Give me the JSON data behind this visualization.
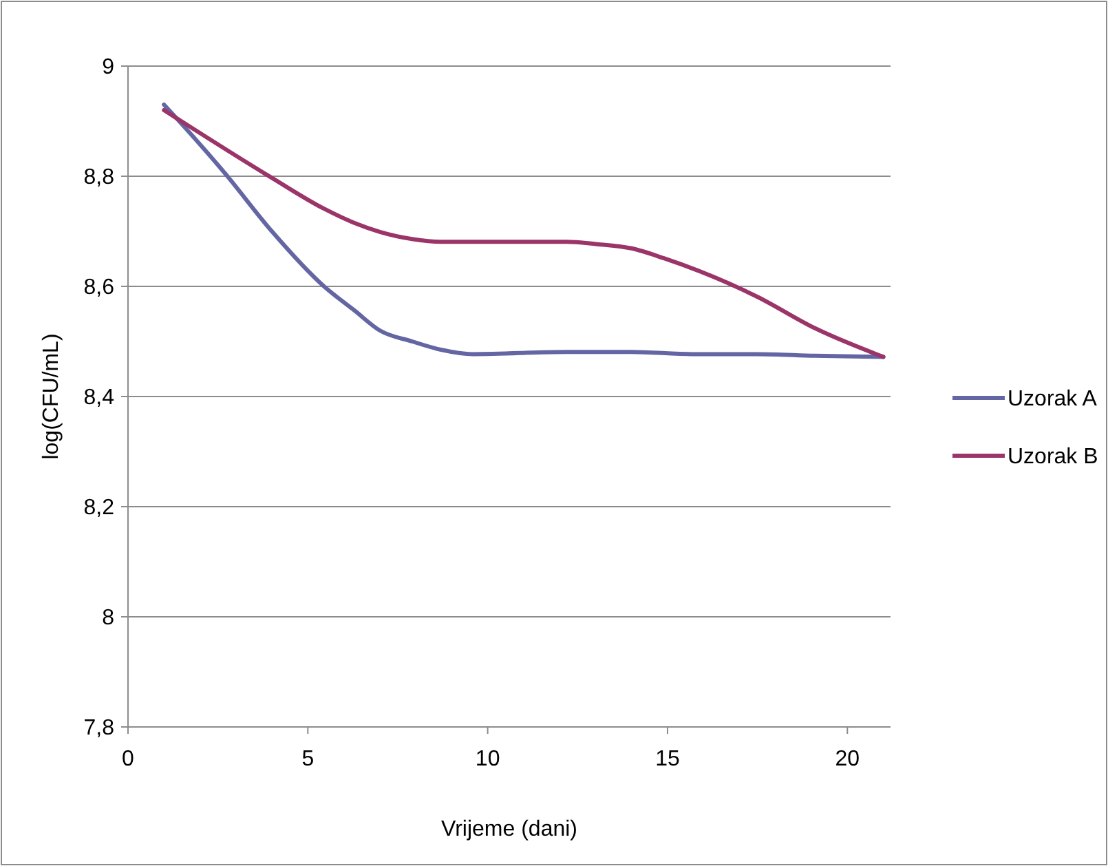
{
  "chart_data": {
    "type": "line",
    "xlabel": "Vrijeme (dani)",
    "ylabel": "log(CFU/mL)",
    "xlim": [
      0,
      21.2
    ],
    "xticks": [
      0,
      5,
      10,
      15,
      20
    ],
    "ylim": [
      7.8,
      9
    ],
    "yticks": [
      {
        "value": 7.8,
        "label": "7,8"
      },
      {
        "value": 8,
        "label": "8"
      },
      {
        "value": 8.2,
        "label": "8,2"
      },
      {
        "value": 8.4,
        "label": "8,4"
      },
      {
        "value": 8.6,
        "label": "8,6"
      },
      {
        "value": 8.8,
        "label": "8,8"
      },
      {
        "value": 9,
        "label": "9"
      }
    ],
    "grid": "y",
    "legend": "right",
    "marker": "none",
    "line_style": "solid",
    "series": [
      {
        "name": "Uzorak A",
        "color": "#6366a3",
        "x": [
          1,
          1.7,
          2.7,
          4,
          5.45,
          6.3,
          7,
          7.9,
          8.7,
          9.6,
          12.2,
          14,
          15.7,
          17.5,
          19.1,
          21
        ],
        "values": [
          8.93,
          8.88,
          8.805,
          8.7,
          8.6,
          8.556,
          8.52,
          8.5,
          8.485,
          8.477,
          8.481,
          8.481,
          8.477,
          8.477,
          8.474,
          8.472
        ]
      },
      {
        "name": "Uzorak B",
        "color": "#9b3468",
        "x": [
          1,
          4,
          5.45,
          6.3,
          7,
          7.9,
          8.7,
          12.2,
          13,
          14,
          14.9,
          17.5,
          19.1,
          21
        ],
        "values": [
          8.92,
          8.797,
          8.741,
          8.715,
          8.699,
          8.686,
          8.681,
          8.681,
          8.677,
          8.669,
          8.651,
          8.581,
          8.524,
          8.472
        ]
      }
    ]
  }
}
